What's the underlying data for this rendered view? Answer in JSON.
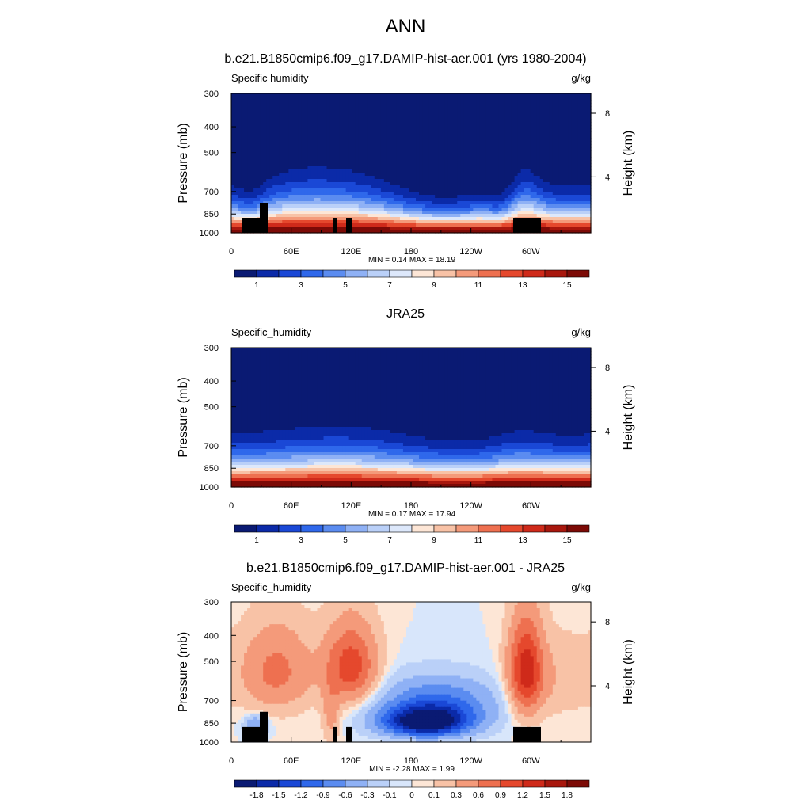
{
  "page_title": "ANN",
  "colors": {
    "abs_palette": [
      "#0a1a73",
      "#0b2aa8",
      "#1a48d6",
      "#2f68eb",
      "#5b8cf0",
      "#8fb1f5",
      "#bad0f8",
      "#dde8fb",
      "#fde6d6",
      "#f8c2a6",
      "#f49a7a",
      "#ee7050",
      "#e5482d",
      "#cf2a1a",
      "#a8170d",
      "#7c0a06"
    ],
    "diff_palette": [
      "#0a1a73",
      "#0b2aa8",
      "#1a48d6",
      "#2f68eb",
      "#5b8cf0",
      "#8fb1f5",
      "#bad0f8",
      "#d8e6fb",
      "#fde6d6",
      "#f8c2a6",
      "#f49a7a",
      "#ee7050",
      "#e5482d",
      "#cf2a1a",
      "#a8170d",
      "#7c0a06"
    ]
  },
  "chart_data": [
    {
      "type": "heatmap",
      "title": "b.e21.B1850cmip6.f09_g17.DAMIP-hist-aer.001 (yrs 1980-2004)",
      "left_label": "Specific humidity",
      "units": "g/kg",
      "ylabel": "Pressure (mb)",
      "ylabel_right": "Height (km)",
      "xticks": [
        "0",
        "60E",
        "120E",
        "180",
        "120W",
        "60W"
      ],
      "x_tick_lon": [
        0,
        60,
        120,
        180,
        240,
        300
      ],
      "xlim": [
        0,
        360
      ],
      "yticks": [
        "300",
        "400",
        "500",
        "700",
        "850",
        "1000"
      ],
      "y_tick_p": [
        300,
        400,
        500,
        700,
        850,
        1000
      ],
      "ylim": [
        300,
        1000
      ],
      "height_ticks": [
        "8",
        "4"
      ],
      "height_tick_p": [
        356,
        617
      ],
      "stats": "MIN =   0.14  MAX =  18.19",
      "colorbar_labels": [
        "1",
        "3",
        "5",
        "7",
        "9",
        "11",
        "13",
        "15"
      ],
      "kind": "model"
    },
    {
      "type": "heatmap",
      "title": "JRA25",
      "left_label": "Specific_humidity",
      "units": "g/kg",
      "ylabel": "Pressure (mb)",
      "ylabel_right": "Height (km)",
      "xticks": [
        "0",
        "60E",
        "120E",
        "180",
        "120W",
        "60W"
      ],
      "x_tick_lon": [
        0,
        60,
        120,
        180,
        240,
        300
      ],
      "xlim": [
        0,
        360
      ],
      "yticks": [
        "300",
        "400",
        "500",
        "700",
        "850",
        "1000"
      ],
      "y_tick_p": [
        300,
        400,
        500,
        700,
        850,
        1000
      ],
      "ylim": [
        300,
        1000
      ],
      "height_ticks": [
        "8",
        "4"
      ],
      "height_tick_p": [
        356,
        617
      ],
      "stats": "MIN =   0.17  MAX =  17.94",
      "colorbar_labels": [
        "1",
        "3",
        "5",
        "7",
        "9",
        "11",
        "13",
        "15"
      ],
      "kind": "obs"
    },
    {
      "type": "heatmap",
      "title": "b.e21.B1850cmip6.f09_g17.DAMIP-hist-aer.001 - JRA25",
      "left_label": "Specific_humidity",
      "units": "g/kg",
      "ylabel": "Pressure (mb)",
      "ylabel_right": "Height (km)",
      "xticks": [
        "0",
        "60E",
        "120E",
        "180",
        "120W",
        "60W"
      ],
      "x_tick_lon": [
        0,
        60,
        120,
        180,
        240,
        300
      ],
      "xlim": [
        0,
        360
      ],
      "yticks": [
        "300",
        "400",
        "500",
        "700",
        "850",
        "1000"
      ],
      "y_tick_p": [
        300,
        400,
        500,
        700,
        850,
        1000
      ],
      "ylim": [
        300,
        1000
      ],
      "height_ticks": [
        "8",
        "4"
      ],
      "height_tick_p": [
        356,
        617
      ],
      "stats": "MIN =  -2.28  MAX =   1.99",
      "colorbar_labels": [
        "-1.8",
        "-1.5",
        "-1.2",
        "-0.9",
        "-0.6",
        "-0.3",
        "-0.1",
        "0",
        "0.1",
        "0.3",
        "0.6",
        "0.9",
        "1.2",
        "1.5",
        "1.8"
      ],
      "kind": "diff"
    }
  ]
}
